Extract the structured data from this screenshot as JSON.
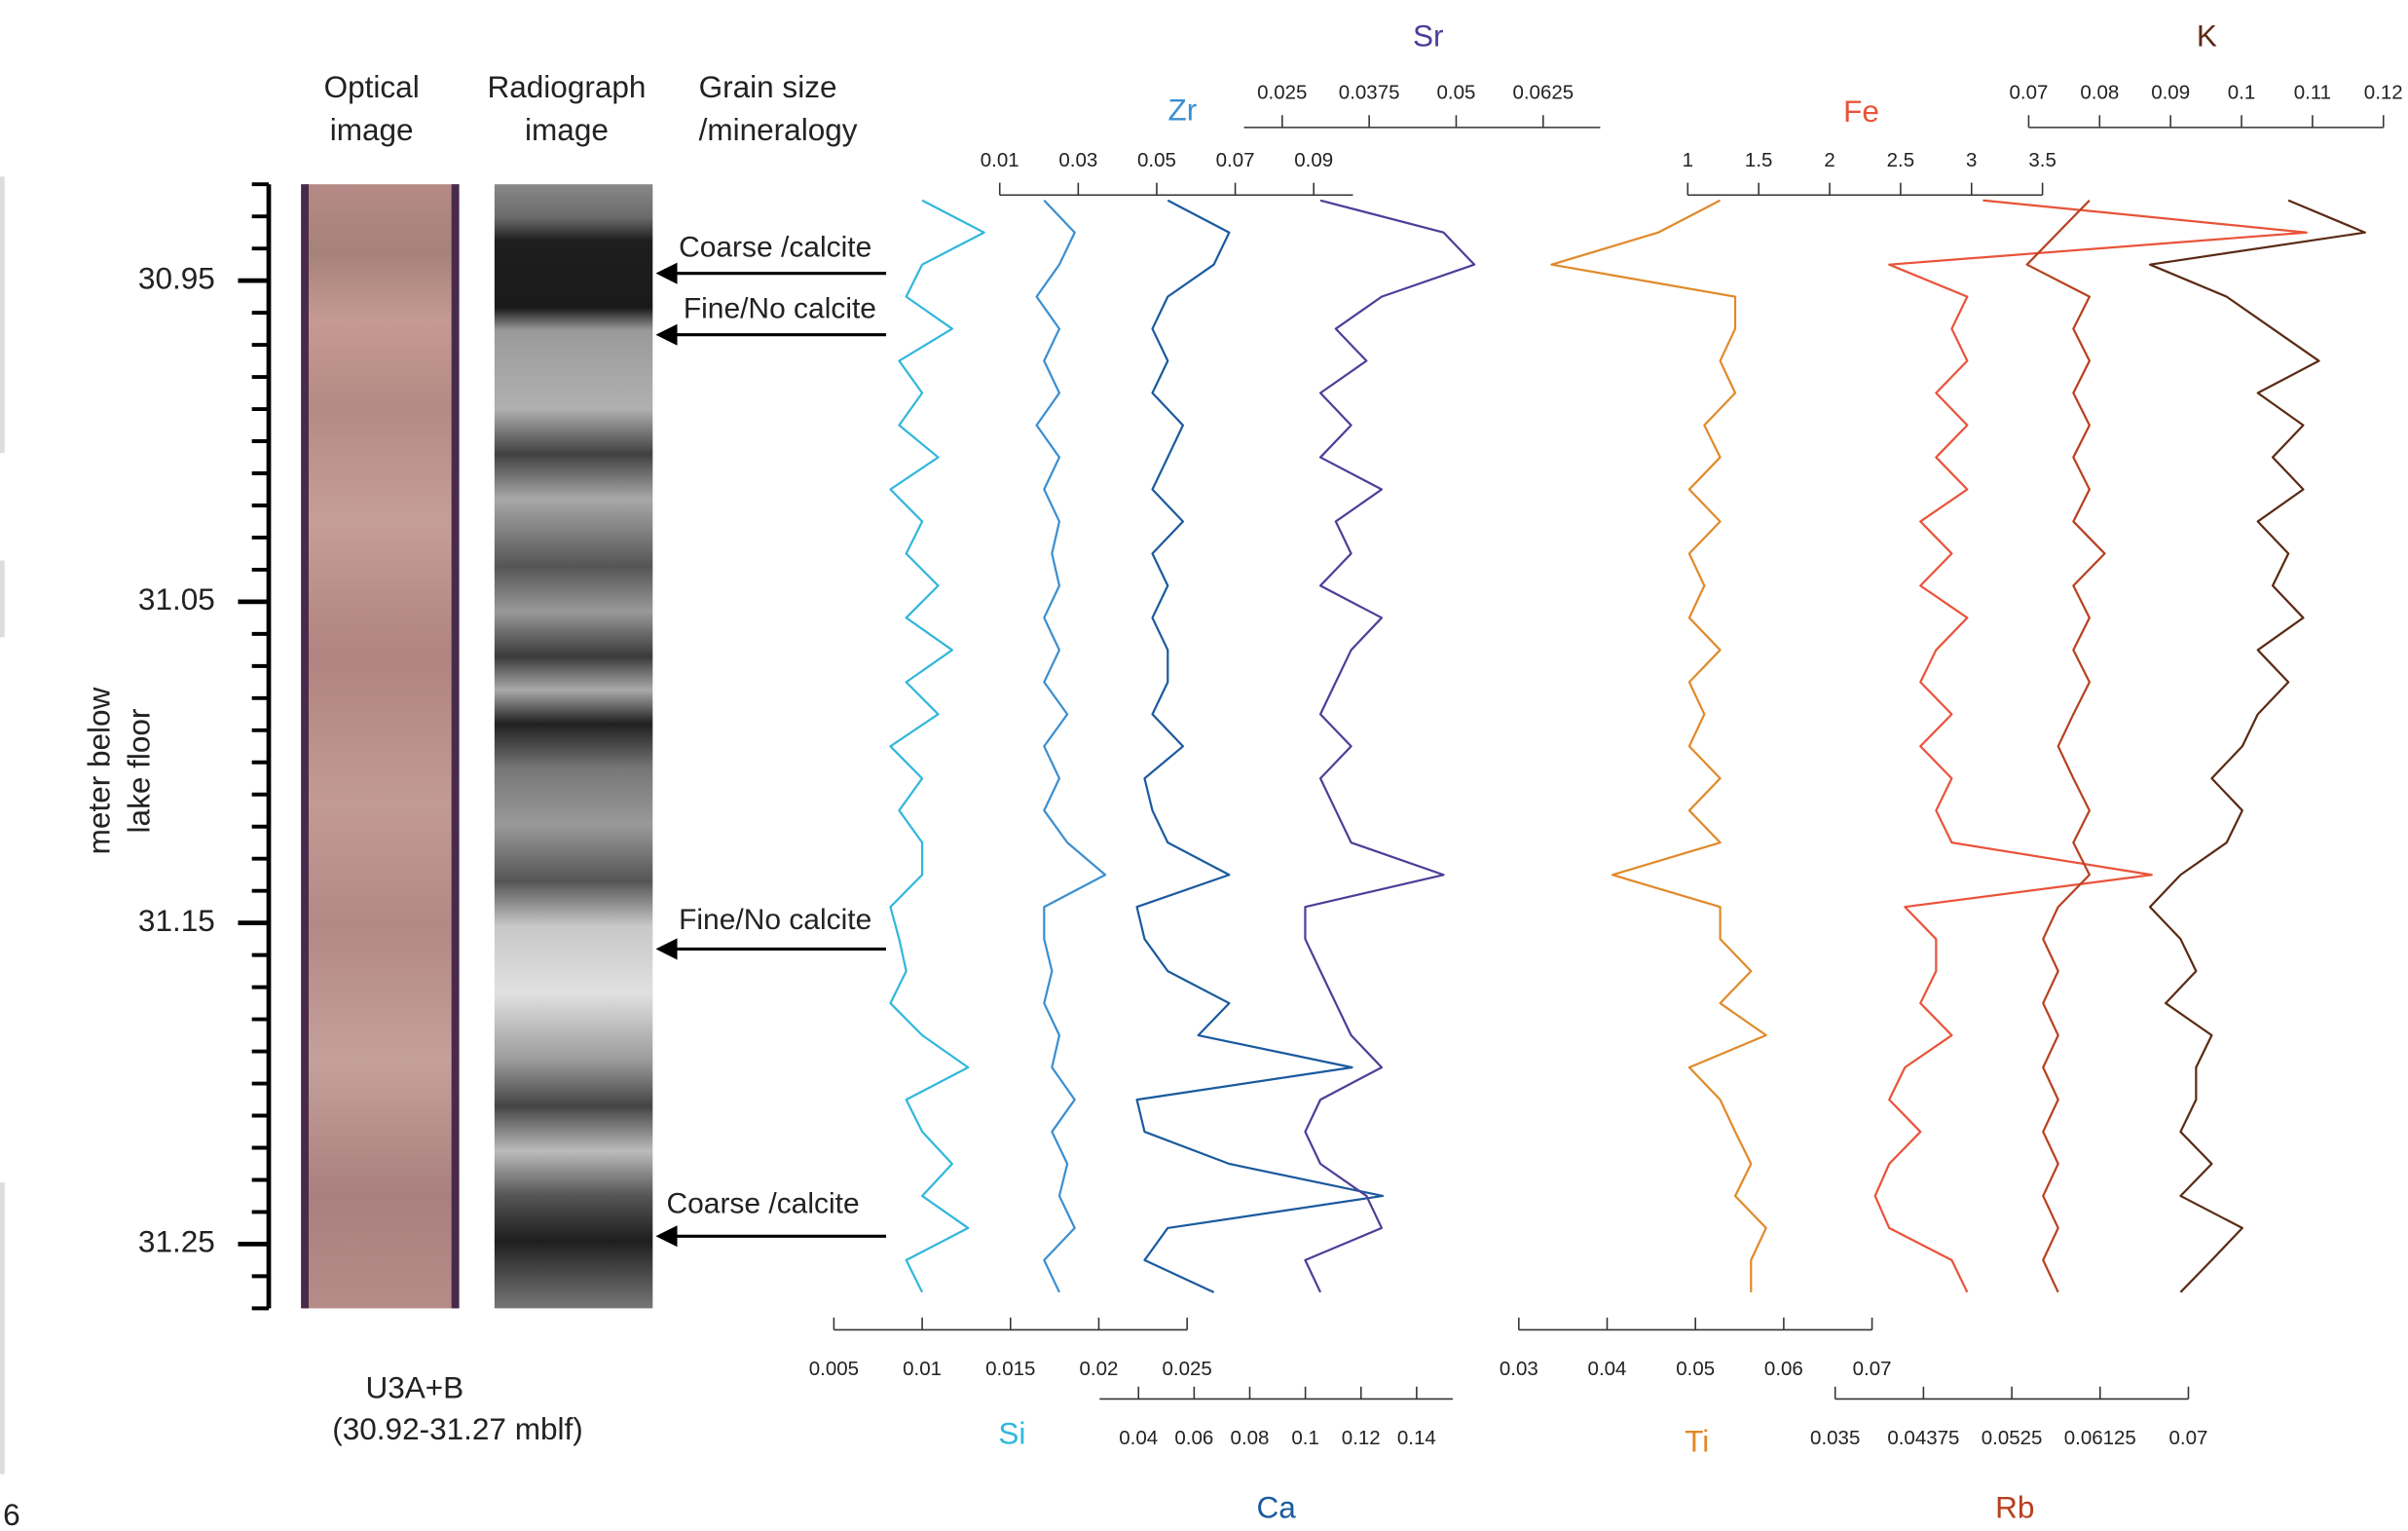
{
  "header": {
    "columns": [
      [
        "Optical",
        "image"
      ],
      [
        "Radiograph",
        "image"
      ],
      [
        "Grain size",
        "/mineralogy"
      ]
    ]
  },
  "annotations": [
    "Coarse /calcite",
    "Fine/No calcite",
    "Fine/No calcite",
    "Coarse /calcite"
  ],
  "core": {
    "label": "U3A+B",
    "range": "(30.92-31.27 mblf)"
  },
  "page_number": "6",
  "chart_data": {
    "type": "line",
    "ylabel": [
      "meter below",
      "lake  floor"
    ],
    "ylim": [
      30.92,
      31.27
    ],
    "yticks": [
      30.95,
      31.05,
      31.15,
      31.25
    ],
    "yticks_minor": [
      30.92,
      30.93,
      30.94,
      30.96,
      30.97,
      30.98,
      30.99,
      31.0,
      31.01,
      31.02,
      31.03,
      31.04,
      31.06,
      31.07,
      31.08,
      31.09,
      31.1,
      31.11,
      31.12,
      31.13,
      31.14,
      31.16,
      31.17,
      31.18,
      31.19,
      31.2,
      31.21,
      31.22,
      31.23,
      31.24,
      31.26,
      31.27
    ],
    "depths": [
      30.925,
      30.935,
      30.945,
      30.955,
      30.965,
      30.975,
      30.985,
      30.995,
      31.005,
      31.015,
      31.025,
      31.035,
      31.045,
      31.055,
      31.065,
      31.075,
      31.085,
      31.095,
      31.105,
      31.115,
      31.125,
      31.135,
      31.145,
      31.155,
      31.165,
      31.175,
      31.185,
      31.195,
      31.205,
      31.215,
      31.225,
      31.235,
      31.245,
      31.255,
      31.265
    ],
    "panels": [
      {
        "type": "line",
        "title": "Si",
        "color": "#31b7dc",
        "xlim": [
          0.005,
          0.025
        ],
        "xticks": [
          0.005,
          0.01,
          0.015,
          0.02,
          0.025
        ],
        "values": [
          0.01,
          0.0135,
          0.01,
          0.0091,
          0.0117,
          0.0087,
          0.01,
          0.0087,
          0.0109,
          0.0082,
          0.01,
          0.0091,
          0.0109,
          0.0091,
          0.0117,
          0.0091,
          0.0109,
          0.0082,
          0.01,
          0.0087,
          0.01,
          0.01,
          0.0082,
          0.0087,
          0.0091,
          0.0082,
          0.01,
          0.0126,
          0.0091,
          0.01,
          0.0117,
          0.01,
          0.0126,
          0.0091,
          0.01
        ]
      },
      {
        "type": "line",
        "title": "Zr",
        "color": "#3a8fd0",
        "xlim": [
          0.01,
          0.1
        ],
        "xticks": [
          0.01,
          0.03,
          0.05,
          0.07,
          0.09
        ],
        "values": [
          0.0213,
          0.0291,
          0.0252,
          0.0194,
          0.0252,
          0.0213,
          0.0252,
          0.0194,
          0.0252,
          0.0213,
          0.0252,
          0.0233,
          0.0252,
          0.0213,
          0.0252,
          0.0213,
          0.0272,
          0.0213,
          0.0252,
          0.0213,
          0.0272,
          0.0369,
          0.0213,
          0.0213,
          0.0233,
          0.0213,
          0.0252,
          0.0233,
          0.0291,
          0.0233,
          0.0272,
          0.0252,
          0.0291,
          0.0213,
          0.0252
        ]
      },
      {
        "type": "line",
        "title": "Ca",
        "color": "#1a5a9e",
        "xlim": [
          0.026,
          0.153
        ],
        "xticks": [
          0.04,
          0.06,
          0.08,
          0.1,
          0.12,
          0.14
        ],
        "values": [
          0.0505,
          0.0726,
          0.0671,
          0.0505,
          0.045,
          0.0505,
          0.045,
          0.056,
          0.0505,
          0.045,
          0.056,
          0.045,
          0.0505,
          0.045,
          0.0505,
          0.0505,
          0.045,
          0.056,
          0.0422,
          0.045,
          0.0505,
          0.0726,
          0.0394,
          0.0422,
          0.0505,
          0.0726,
          0.0615,
          0.1168,
          0.0394,
          0.0422,
          0.0726,
          0.1278,
          0.0505,
          0.0422,
          0.0671
        ]
      },
      {
        "type": "line",
        "title": "Sr",
        "color": "#4b3f99",
        "xlim": [
          0.0195,
          0.0707
        ],
        "xticks": [
          0.025,
          0.0375,
          0.05,
          0.0625
        ],
        "values": [
          0.0305,
          0.0482,
          0.0526,
          0.0393,
          0.0327,
          0.0371,
          0.0305,
          0.0349,
          0.0305,
          0.0393,
          0.0327,
          0.0349,
          0.0305,
          0.0393,
          0.0349,
          0.0327,
          0.0305,
          0.0349,
          0.0305,
          0.0327,
          0.0349,
          0.0482,
          0.0283,
          0.0283,
          0.0305,
          0.0327,
          0.0349,
          0.0393,
          0.0305,
          0.0283,
          0.0305,
          0.0371,
          0.0393,
          0.0283,
          0.0305
        ]
      },
      {
        "type": "line",
        "title": "Ti",
        "color": "#e08a2a",
        "xlim": [
          0.03,
          0.07
        ],
        "xticks": [
          0.03,
          0.04,
          0.05,
          0.06,
          0.07
        ],
        "values": [
          0.0528,
          0.0458,
          0.0337,
          0.0545,
          0.0545,
          0.0528,
          0.0545,
          0.051,
          0.0528,
          0.0493,
          0.0528,
          0.0493,
          0.051,
          0.0493,
          0.0528,
          0.0493,
          0.051,
          0.0493,
          0.0528,
          0.0493,
          0.0528,
          0.0406,
          0.0528,
          0.0528,
          0.0563,
          0.0528,
          0.058,
          0.0493,
          0.0528,
          0.0545,
          0.0563,
          0.0545,
          0.058,
          0.0563,
          0.0563
        ]
      },
      {
        "type": "line",
        "title": "Fe",
        "color": "#e9533a",
        "xlim": [
          1,
          3.5
        ],
        "xticks": [
          1,
          1.5,
          2,
          2.5,
          3,
          3.5
        ],
        "values": [
          3.08,
          5.36,
          2.42,
          2.97,
          2.86,
          2.97,
          2.75,
          2.97,
          2.75,
          2.97,
          2.64,
          2.86,
          2.64,
          2.97,
          2.75,
          2.64,
          2.86,
          2.64,
          2.86,
          2.75,
          2.86,
          4.27,
          2.53,
          2.75,
          2.75,
          2.64,
          2.86,
          2.53,
          2.42,
          2.64,
          2.42,
          2.32,
          2.42,
          2.86,
          2.97
        ]
      },
      {
        "type": "line",
        "title": "Rb",
        "color": "#b8401f",
        "xlim": [
          0.035,
          0.07
        ],
        "xticks": [
          0.035,
          0.04375,
          0.0525,
          0.06125,
          0.07
        ],
        "values": [
          0.0602,
          0.0571,
          0.054,
          0.0602,
          0.0586,
          0.0602,
          0.0586,
          0.0602,
          0.0586,
          0.0602,
          0.0586,
          0.0617,
          0.0586,
          0.0602,
          0.0586,
          0.0602,
          0.0586,
          0.0571,
          0.0586,
          0.0602,
          0.0586,
          0.0602,
          0.0571,
          0.0556,
          0.0571,
          0.0556,
          0.0571,
          0.0556,
          0.0571,
          0.0556,
          0.0571,
          0.0556,
          0.0571,
          0.0556,
          0.0571
        ]
      },
      {
        "type": "line",
        "title": "K",
        "color": "#5a2a14",
        "xlim": [
          0.07,
          0.12
        ],
        "xticks": [
          0.07,
          0.08,
          0.09,
          0.1,
          0.11,
          0.12
        ],
        "values": [
          0.1066,
          0.1174,
          0.0871,
          0.0979,
          0.1044,
          0.1109,
          0.1023,
          0.1087,
          0.1044,
          0.1087,
          0.1023,
          0.1066,
          0.1044,
          0.1087,
          0.1023,
          0.1066,
          0.1023,
          0.1001,
          0.0958,
          0.1001,
          0.0979,
          0.0914,
          0.0871,
          0.0914,
          0.0936,
          0.0893,
          0.0958,
          0.0936,
          0.0936,
          0.0914,
          0.0958,
          0.0914,
          0.1001,
          0.0958,
          0.0914
        ]
      }
    ]
  }
}
